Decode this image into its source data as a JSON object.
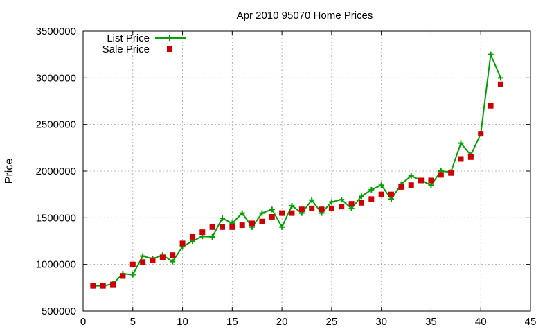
{
  "chart_data": {
    "type": "line",
    "title": "Apr 2010 95070 Home Prices",
    "xlabel": "",
    "ylabel": "Price",
    "xlim": [
      0,
      45
    ],
    "ylim": [
      500000,
      3500000
    ],
    "xticks": [
      0,
      5,
      10,
      15,
      20,
      25,
      30,
      35,
      40,
      45
    ],
    "yticks": [
      500000,
      1000000,
      1500000,
      2000000,
      2500000,
      3000000,
      3500000
    ],
    "grid": true,
    "legend_position": "top-left",
    "series": [
      {
        "name": "List Price",
        "style": "line-with-plus-markers",
        "color": "#00a000",
        "x": [
          1,
          2,
          3,
          4,
          5,
          6,
          7,
          8,
          9,
          10,
          11,
          12,
          13,
          14,
          15,
          16,
          17,
          18,
          19,
          20,
          21,
          22,
          23,
          24,
          25,
          26,
          27,
          28,
          29,
          30,
          31,
          32,
          33,
          34,
          35,
          36,
          37,
          38,
          39,
          40,
          41,
          42
        ],
        "y": [
          770000,
          770000,
          790000,
          900000,
          890000,
          1090000,
          1060000,
          1100000,
          1030000,
          1190000,
          1250000,
          1300000,
          1295000,
          1495000,
          1440000,
          1550000,
          1400000,
          1550000,
          1590000,
          1400000,
          1630000,
          1550000,
          1690000,
          1550000,
          1670000,
          1695000,
          1600000,
          1730000,
          1800000,
          1850000,
          1700000,
          1860000,
          1950000,
          1900000,
          1850000,
          2000000,
          1990000,
          2300000,
          2170000,
          2400000,
          3250000,
          3000000
        ]
      },
      {
        "name": "Sale Price",
        "style": "square-markers",
        "color": "#cc0000",
        "x": [
          1,
          2,
          3,
          4,
          5,
          6,
          7,
          8,
          9,
          10,
          11,
          12,
          13,
          14,
          15,
          16,
          17,
          18,
          19,
          20,
          21,
          22,
          23,
          24,
          25,
          26,
          27,
          28,
          29,
          30,
          31,
          32,
          33,
          34,
          35,
          36,
          37,
          38,
          39,
          40,
          41,
          42
        ],
        "y": [
          770000,
          770000,
          785000,
          875000,
          1000000,
          1025000,
          1045000,
          1075000,
          1100000,
          1225000,
          1295000,
          1345000,
          1400000,
          1400000,
          1400000,
          1420000,
          1440000,
          1460000,
          1510000,
          1550000,
          1550000,
          1590000,
          1600000,
          1590000,
          1600000,
          1620000,
          1650000,
          1660000,
          1700000,
          1750000,
          1750000,
          1830000,
          1850000,
          1900000,
          1900000,
          1960000,
          1980000,
          2130000,
          2150000,
          2400000,
          2700000,
          2930000
        ]
      }
    ]
  }
}
